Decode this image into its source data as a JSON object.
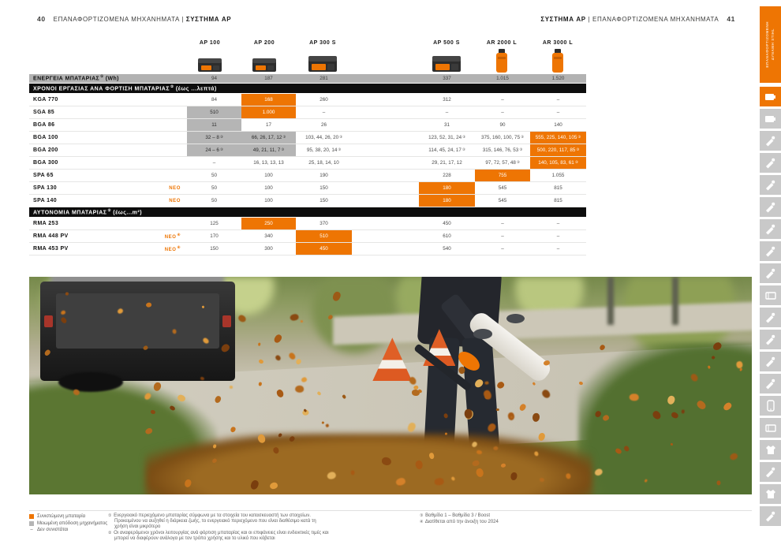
{
  "colors": {
    "accent_orange": "#ee7503",
    "cell_gray": "#b5b5b5",
    "bar_gray": "#b2b2b2",
    "bar_black": "#0d0d0d",
    "rail_gray": "#c9c9c9"
  },
  "header_left": {
    "num": "40",
    "plain": "ΕΠΑΝΑΦΟΡΤΙΖΟΜΕΝΑ ΜΗΧΑΝΗΜΑΤΑ |",
    "bold": "ΣΥΣΤΗΜΑ AP"
  },
  "header_right": {
    "bold": "ΣΥΣΤΗΜΑ AP",
    "plain": "| ΕΠΑΝΑΦΟΡΤΙΖΟΜΕΝΑ ΜΗΧΑΝΗΜΑΤΑ",
    "num": "41"
  },
  "side_tab": {
    "line1": "ΕΠΑΝΑΦΟΡΤΙΖΟΜΕΝΗ",
    "line2": "ΔΥΝΑΜΗ STIHL"
  },
  "batteries": [
    {
      "name": "AP 100",
      "type": "ap"
    },
    {
      "name": "AP 200",
      "type": "ap"
    },
    {
      "name": "AP 300 S",
      "type": "ap-large"
    },
    {
      "name": "AP 500 S",
      "type": "ap-large"
    },
    {
      "name": "AR 2000 L",
      "type": "ar"
    },
    {
      "name": "AR 3000 L",
      "type": "ar"
    }
  ],
  "table": {
    "rows": [
      {
        "kind": "gray-bar",
        "label": {
          "pre": "ΕΝΕΡΓΕΙΑ ΜΠΑΤΑΡΙΑΣ",
          "sup": "1",
          "post": " (Wh)"
        },
        "cells": [
          {
            "t": "94"
          },
          {
            "t": "187"
          },
          {
            "t": "281"
          },
          {
            "t": "337"
          },
          {
            "t": "1.015"
          },
          {
            "t": "1.520"
          }
        ]
      },
      {
        "kind": "black-bar",
        "label": {
          "pre": "ΧΡΟΝΟΙ ΕΡΓΑΣΙΑΣ ΑΝΑ ΦΟΡΤΙΣΗ ΜΠΑΤΑΡΙΑΣ",
          "sup": "2",
          "post": " (έως ...λεπτά)"
        }
      },
      {
        "kind": "data",
        "label": "KGA 770",
        "cells": [
          {
            "t": "84"
          },
          {
            "t": "168",
            "bg": "orange"
          },
          {
            "t": "260"
          },
          {
            "t": "312"
          },
          {
            "t": "–"
          },
          {
            "t": "–"
          }
        ]
      },
      {
        "kind": "data",
        "label": "SGA 85",
        "cells": [
          {
            "t": "510",
            "bg": "gray"
          },
          {
            "t": "1.000",
            "bg": "orange"
          },
          {
            "t": "–"
          },
          {
            "t": "–"
          },
          {
            "t": "–"
          },
          {
            "t": "–"
          }
        ]
      },
      {
        "kind": "data",
        "label": "BGA 86",
        "cells": [
          {
            "t": "11",
            "bg": "gray"
          },
          {
            "t": "17"
          },
          {
            "t": "26"
          },
          {
            "t": "31"
          },
          {
            "t": "90"
          },
          {
            "t": "140"
          }
        ]
      },
      {
        "kind": "data",
        "label": "BGA 100",
        "cells": [
          {
            "t": "32 – 8",
            "sup": "3",
            "bg": "gray"
          },
          {
            "t": "66, 26, 17, 12",
            "sup": "3",
            "bg": "gray"
          },
          {
            "t": "103, 44, 26, 20",
            "sup": "3"
          },
          {
            "t": "123, 52, 31, 24",
            "sup": "3"
          },
          {
            "t": "375, 160, 100, 75",
            "sup": "3"
          },
          {
            "t": "555, 225, 140, 105",
            "sup": "3",
            "bg": "orange"
          }
        ]
      },
      {
        "kind": "data",
        "label": "BGA 200",
        "cells": [
          {
            "t": "24 – 6",
            "sup": "3",
            "bg": "gray"
          },
          {
            "t": "49, 21, 11, 7",
            "sup": "3",
            "bg": "gray"
          },
          {
            "t": "95, 38, 20, 14",
            "sup": "3"
          },
          {
            "t": "114, 45, 24, 17",
            "sup": "3"
          },
          {
            "t": "315, 146, 76, 53",
            "sup": "3"
          },
          {
            "t": "500, 220, 117, 85",
            "sup": "3",
            "bg": "orange"
          }
        ]
      },
      {
        "kind": "data",
        "label": "BGA 300",
        "cells": [
          {
            "t": "–"
          },
          {
            "t": "16, 13, 13, 13"
          },
          {
            "t": "25, 18, 14, 10"
          },
          {
            "t": "29, 21, 17, 12"
          },
          {
            "t": "97, 72, 57, 48",
            "sup": "3"
          },
          {
            "t": "140, 105, 83, 61",
            "sup": "3",
            "bg": "orange"
          }
        ]
      },
      {
        "kind": "data",
        "label": "SPA 65",
        "cells": [
          {
            "t": "50"
          },
          {
            "t": "100"
          },
          {
            "t": "190"
          },
          {
            "t": "228"
          },
          {
            "t": "755",
            "bg": "orange"
          },
          {
            "t": "1.055"
          }
        ]
      },
      {
        "kind": "data",
        "label": "SPA 130",
        "neo": "ΝΕΟ",
        "cells": [
          {
            "t": "50"
          },
          {
            "t": "100"
          },
          {
            "t": "150"
          },
          {
            "t": "180",
            "bg": "orange"
          },
          {
            "t": "545"
          },
          {
            "t": "815"
          }
        ]
      },
      {
        "kind": "data",
        "label": "SPA 140",
        "neo": "ΝΕΟ",
        "cells": [
          {
            "t": "50"
          },
          {
            "t": "100"
          },
          {
            "t": "150"
          },
          {
            "t": "180",
            "bg": "orange"
          },
          {
            "t": "545"
          },
          {
            "t": "815"
          }
        ]
      },
      {
        "kind": "black-bar",
        "label": {
          "pre": "ΑΥΤΟΝΟΜΙΑ ΜΠΑΤΑΡΙΑΣ",
          "sup": "2",
          "post": " (έως...m²)"
        }
      },
      {
        "kind": "data",
        "label": "RMA 253",
        "cells": [
          {
            "t": "125"
          },
          {
            "t": "250",
            "bg": "orange"
          },
          {
            "t": "370"
          },
          {
            "t": "450"
          },
          {
            "t": "–"
          },
          {
            "t": "–"
          }
        ]
      },
      {
        "kind": "data",
        "label": "RMA 448 PV",
        "neo": "ΝΕΟ",
        "neo_sup": "4",
        "cells": [
          {
            "t": "170"
          },
          {
            "t": "340"
          },
          {
            "t": "510",
            "bg": "orange"
          },
          {
            "t": "610"
          },
          {
            "t": "–"
          },
          {
            "t": "–"
          }
        ]
      },
      {
        "kind": "data",
        "label": "RMA 453 PV",
        "neo": "ΝΕΟ",
        "neo_sup": "4",
        "cells": [
          {
            "t": "150"
          },
          {
            "t": "300"
          },
          {
            "t": "450",
            "bg": "orange"
          },
          {
            "t": "540"
          },
          {
            "t": "–"
          },
          {
            "t": "–"
          }
        ]
      }
    ]
  },
  "legend": [
    {
      "mark": "square-orange",
      "text": "Συνιστώμενη μπαταρία"
    },
    {
      "mark": "square-gray",
      "text": "Μειωμένη απόδοση μηχανήματος"
    },
    {
      "mark": "–",
      "text": "Δεν συνιστάται"
    }
  ],
  "notes_main": [
    {
      "sup": "1",
      "text": "Ενεργειακό περιεχόμενο μπαταρίας σύμφωνα με τα στοιχεία του κατασκευαστή των στοιχείων. Προκειμένου να αυξηθεί η διάρκεια ζωής, το ενεργειακό περιεχόμενο που είναι διαθέσιμο κατά τη χρήση είναι μικρότερο"
    },
    {
      "sup": "2",
      "text": "Οι αναφερόμενοι χρόνοι λειτουργίας ανά φόρτιση μπαταρίας και οι επιφάνειες είναι ενδεικτικές τιμές και μπορεί να διαφέρουν ανάλογα με τον τρόπο χρήσης και το υλικό που κόβεται"
    }
  ],
  "notes_side": [
    {
      "sup": "3",
      "text": "Βαθμίδα 1 – Βαθμίδα 3 / Boost"
    },
    {
      "sup": "4",
      "text": "Διατίθεται από την άνοιξη του 2024"
    }
  ],
  "rail": {
    "items": [
      {
        "icon": "battery-ap-system-icon",
        "active": true
      },
      {
        "icon": "battery-ak-system-icon",
        "active": false
      },
      {
        "icon": "chainsaw-icon",
        "active": false
      },
      {
        "icon": "top-handle-chainsaw-icon",
        "active": false
      },
      {
        "icon": "pole-pruner-icon",
        "active": false
      },
      {
        "icon": "hedge-trimmer-icon",
        "active": false
      },
      {
        "icon": "blower-icon",
        "active": false
      },
      {
        "icon": "brushcutter-icon",
        "active": false
      },
      {
        "icon": "grass-trimmer-icon",
        "active": false
      },
      {
        "icon": "robotic-mower-icon",
        "active": false
      },
      {
        "icon": "lawn-mower-icon",
        "active": false
      },
      {
        "icon": "kombi-system-icon",
        "active": false
      },
      {
        "icon": "sprayer-icon",
        "active": false
      },
      {
        "icon": "harvester-icon",
        "active": false
      },
      {
        "icon": "smartphone-icon",
        "active": false
      },
      {
        "icon": "charging-station-icon",
        "active": false
      },
      {
        "icon": "helmet-icon",
        "active": false
      },
      {
        "icon": "axe-icon",
        "active": false
      },
      {
        "icon": "apparel-icon",
        "active": false
      },
      {
        "icon": "accessories-icon",
        "active": false
      }
    ]
  },
  "photo": {
    "leaf_count": 120,
    "leaf_palette": [
      "#c8741c",
      "#a85a14",
      "#e09a3a",
      "#8a4a12",
      "#d4812a",
      "#b36a1e",
      "#7a3e0e",
      "#e2b05a",
      "#9c5a16"
    ]
  }
}
